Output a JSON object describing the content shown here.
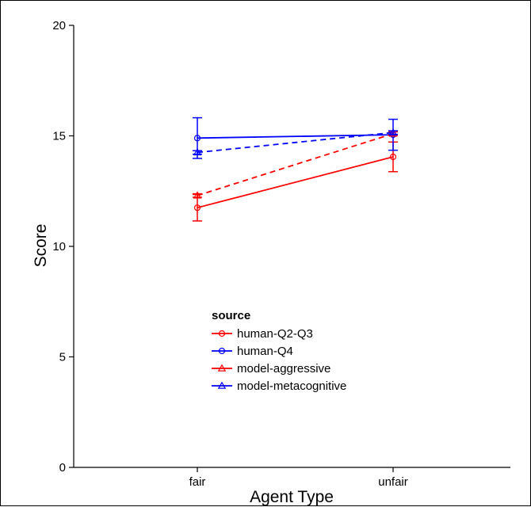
{
  "chart_data": {
    "type": "line",
    "categories": [
      "fair",
      "unfair"
    ],
    "xlabel": "Agent Type",
    "ylabel": "Score",
    "ylim": [
      0,
      20
    ],
    "yticks": [
      0,
      5,
      10,
      15,
      20
    ],
    "grid": false,
    "legend": {
      "title": "source",
      "placement": "center-left"
    },
    "series": [
      {
        "name": "human-Q2-Q3",
        "color": "#ff0000",
        "marker": "circle",
        "dash": "solid",
        "values": [
          11.75,
          14.05
        ],
        "err_low": [
          11.15,
          13.38
        ],
        "err_high": [
          12.35,
          14.72
        ]
      },
      {
        "name": "human-Q4",
        "color": "#0000ff",
        "marker": "circle",
        "dash": "solid",
        "values": [
          14.9,
          15.05
        ],
        "err_low": [
          13.98,
          14.35
        ],
        "err_high": [
          15.82,
          15.75
        ]
      },
      {
        "name": "model-aggressive",
        "color": "#ff0000",
        "marker": "triangle",
        "dash": "dashed",
        "values": [
          12.3,
          15.1
        ],
        "err_low": [
          12.22,
          15.02
        ],
        "err_high": [
          12.38,
          15.18
        ]
      },
      {
        "name": "model-metacognitive",
        "color": "#0000ff",
        "marker": "triangle",
        "dash": "dashed",
        "values": [
          14.25,
          15.15
        ],
        "err_low": [
          14.17,
          15.07
        ],
        "err_high": [
          14.33,
          15.23
        ]
      }
    ]
  }
}
